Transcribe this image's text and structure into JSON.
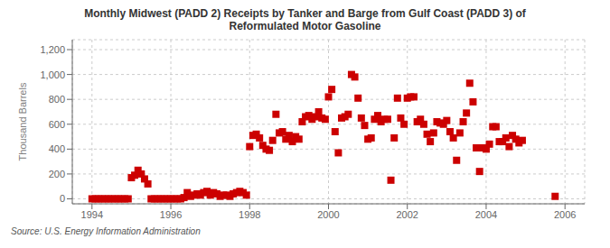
{
  "chart_data": {
    "type": "scatter",
    "title": "Monthly Midwest (PADD 2) Receipts by Tanker and Barge from Gulf Coast (PADD 3) of\nReformulated Motor Gasoline",
    "ylabel": "Thousand Barrels",
    "annotations": [
      "Source: U.S. Energy Information Administration"
    ],
    "color": "#cc0000",
    "marker": "square",
    "grid": true,
    "xlim": [
      1993.5,
      2006.5
    ],
    "ylim": [
      -40,
      1280
    ],
    "xticks": [
      1994,
      1996,
      1998,
      2000,
      2002,
      2004,
      2006
    ],
    "yticks": [
      0,
      200,
      400,
      600,
      800,
      {
        "value": 1000,
        "label": "1,000"
      },
      {
        "value": 1200,
        "label": "1,200"
      }
    ],
    "x": [
      1994.0,
      1994.083,
      1994.167,
      1994.25,
      1994.333,
      1994.417,
      1994.5,
      1994.583,
      1994.667,
      1994.75,
      1994.833,
      1994.917,
      1995.0,
      1995.083,
      1995.167,
      1995.25,
      1995.333,
      1995.417,
      1995.5,
      1995.583,
      1995.667,
      1995.75,
      1995.833,
      1995.917,
      1996.0,
      1996.083,
      1996.167,
      1996.25,
      1996.333,
      1996.417,
      1996.5,
      1996.583,
      1996.667,
      1996.75,
      1996.833,
      1996.917,
      1997.0,
      1997.083,
      1997.167,
      1997.25,
      1997.333,
      1997.417,
      1997.5,
      1997.583,
      1997.667,
      1997.75,
      1997.833,
      1997.917,
      1998.0,
      1998.083,
      1998.167,
      1998.25,
      1998.333,
      1998.417,
      1998.5,
      1998.583,
      1998.667,
      1998.75,
      1998.833,
      1998.917,
      1999.0,
      1999.083,
      1999.167,
      1999.25,
      1999.333,
      1999.417,
      1999.5,
      1999.583,
      1999.667,
      1999.75,
      1999.833,
      1999.917,
      2000.0,
      2000.083,
      2000.167,
      2000.25,
      2000.333,
      2000.417,
      2000.5,
      2000.583,
      2000.667,
      2000.75,
      2000.833,
      2000.917,
      2001.0,
      2001.083,
      2001.167,
      2001.25,
      2001.333,
      2001.417,
      2001.5,
      2001.583,
      2001.667,
      2001.75,
      2001.833,
      2001.917,
      2002.0,
      2002.083,
      2002.167,
      2002.25,
      2002.333,
      2002.417,
      2002.5,
      2002.583,
      2002.667,
      2002.75,
      2002.833,
      2002.917,
      2003.0,
      2003.083,
      2003.167,
      2003.25,
      2003.333,
      2003.417,
      2003.5,
      2003.583,
      2003.667,
      2003.75,
      2003.833,
      2003.917,
      2004.0,
      2004.083,
      2004.167,
      2004.25,
      2004.333,
      2004.417,
      2004.5,
      2004.583,
      2004.667,
      2004.75,
      2004.833,
      2004.917,
      2005.75
    ],
    "values": [
      0,
      0,
      0,
      0,
      0,
      0,
      0,
      0,
      0,
      0,
      0,
      0,
      170,
      190,
      230,
      200,
      160,
      120,
      0,
      0,
      0,
      0,
      0,
      0,
      0,
      0,
      0,
      0,
      10,
      50,
      20,
      30,
      40,
      30,
      50,
      60,
      30,
      50,
      40,
      20,
      30,
      30,
      20,
      40,
      50,
      60,
      50,
      30,
      420,
      510,
      520,
      490,
      430,
      400,
      390,
      470,
      680,
      530,
      540,
      480,
      510,
      460,
      500,
      480,
      620,
      660,
      670,
      640,
      660,
      700,
      650,
      640,
      820,
      880,
      540,
      370,
      650,
      660,
      680,
      1000,
      980,
      810,
      650,
      590,
      480,
      490,
      640,
      670,
      620,
      640,
      640,
      150,
      490,
      810,
      650,
      600,
      810,
      820,
      820,
      620,
      640,
      600,
      520,
      460,
      530,
      620,
      610,
      600,
      630,
      540,
      490,
      310,
      530,
      620,
      690,
      930,
      780,
      410,
      220,
      410,
      400,
      440,
      580,
      580,
      460,
      460,
      490,
      420,
      510,
      480,
      450,
      470,
      20
    ]
  }
}
